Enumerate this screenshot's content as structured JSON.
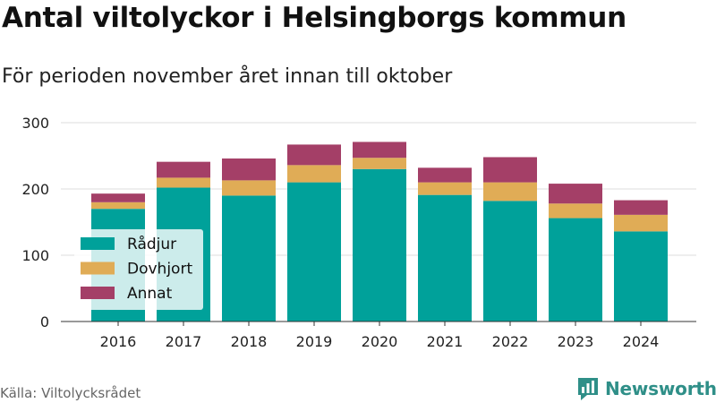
{
  "title": "Antal viltolyckor i Helsingborgs kommun",
  "subtitle": "För perioden november året innan till oktober",
  "source": "Källa: Viltolycksrådet",
  "brand": {
    "name": "Newsworthy",
    "icon": "bar-chart-logo-icon",
    "color": "#2f8f88"
  },
  "chart_data": {
    "type": "bar",
    "stacked": true,
    "categories": [
      "2016",
      "2017",
      "2018",
      "2019",
      "2020",
      "2021",
      "2022",
      "2023",
      "2024"
    ],
    "series": [
      {
        "name": "Rådjur",
        "color": "#00a19a",
        "values": [
          170,
          202,
          190,
          210,
          230,
          191,
          182,
          156,
          136
        ]
      },
      {
        "name": "Dovhjort",
        "color": "#e0ac56",
        "values": [
          10,
          15,
          23,
          26,
          17,
          19,
          28,
          22,
          25
        ]
      },
      {
        "name": "Annat",
        "color": "#a43f67",
        "values": [
          13,
          24,
          33,
          31,
          24,
          22,
          38,
          30,
          22
        ]
      }
    ],
    "ylim": [
      0,
      300
    ],
    "yticks": [
      0,
      100,
      200,
      300
    ],
    "grid": true,
    "legend": "bottom-left"
  }
}
